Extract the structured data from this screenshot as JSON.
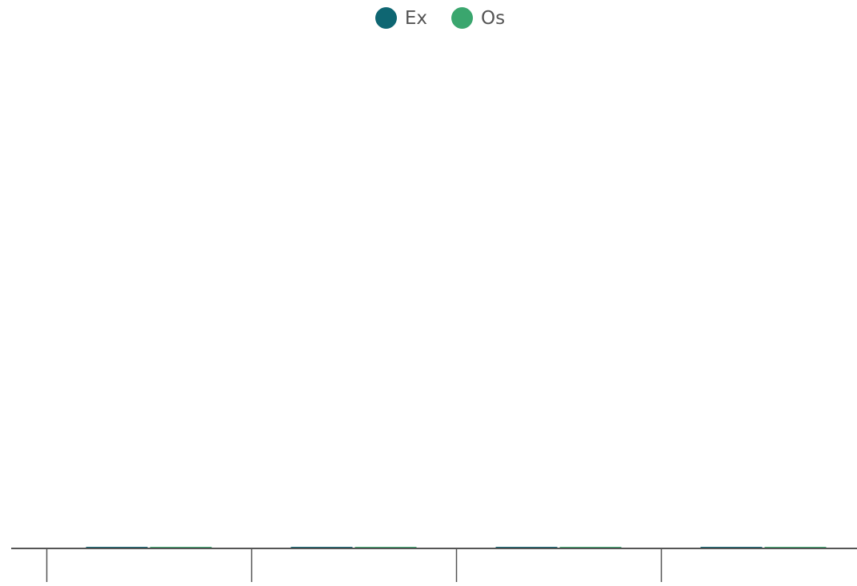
{
  "chart_data": {
    "type": "bar",
    "categories": [
      "",
      "",
      "",
      ""
    ],
    "series": [
      {
        "name": "Ex",
        "color": "#0e6672",
        "values": [
          0,
          0,
          0,
          0
        ]
      },
      {
        "name": "Os",
        "color": "#3aa66e",
        "values": [
          0,
          0,
          0,
          0
        ]
      }
    ],
    "legend_position": "top-center",
    "grid": false,
    "ylim": [
      0,
      100
    ]
  }
}
